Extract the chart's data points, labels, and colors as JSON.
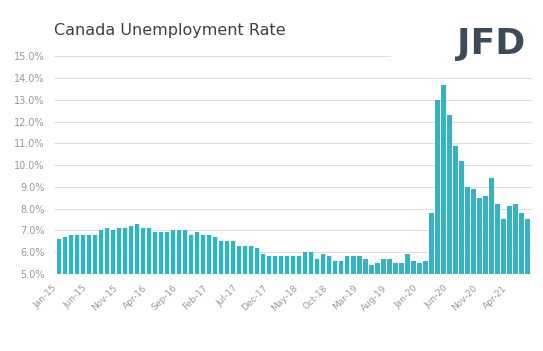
{
  "title": "Canada Unemployment Rate",
  "bar_color": "#22BBCC",
  "bg_color": "#ffffff",
  "grid_color": "#d9d9d9",
  "title_color": "#404040",
  "tick_color": "#999999",
  "ylim": [
    5.0,
    15.5
  ],
  "yticks": [
    5.0,
    6.0,
    7.0,
    8.0,
    9.0,
    10.0,
    11.0,
    12.0,
    13.0,
    14.0,
    15.0
  ],
  "values": [
    6.6,
    6.7,
    6.8,
    6.8,
    6.8,
    6.8,
    6.8,
    7.0,
    7.1,
    7.0,
    7.1,
    7.1,
    7.2,
    7.3,
    7.1,
    7.1,
    6.9,
    6.9,
    6.9,
    7.0,
    7.0,
    7.0,
    6.8,
    6.9,
    6.8,
    6.8,
    6.7,
    6.5,
    6.5,
    6.5,
    6.3,
    6.3,
    6.3,
    6.2,
    5.9,
    5.8,
    5.8,
    5.8,
    5.8,
    5.8,
    5.8,
    6.0,
    6.0,
    5.7,
    5.9,
    5.8,
    5.6,
    5.6,
    5.8,
    5.8,
    5.8,
    5.7,
    5.4,
    5.5,
    5.7,
    5.7,
    5.5,
    5.5,
    5.9,
    5.6,
    5.5,
    5.6,
    7.8,
    13.0,
    13.7,
    12.3,
    10.9,
    10.2,
    9.0,
    8.9,
    8.5,
    8.6,
    9.4,
    8.2,
    7.5,
    8.1,
    8.2,
    7.8,
    7.5
  ],
  "xtick_labels": [
    "Jan-15",
    "Jun-15",
    "Nov-15",
    "Apr-16",
    "Sep-16",
    "Feb-17",
    "Jul-17",
    "Dec-17",
    "May-18",
    "Oct-18",
    "Mar-19",
    "Aug-19",
    "Jan-20",
    "Jun-20",
    "Nov-20",
    "Apr-21"
  ],
  "xtick_positions": [
    0,
    5,
    10,
    15,
    20,
    25,
    30,
    35,
    40,
    45,
    50,
    55,
    60,
    65,
    70,
    75
  ]
}
